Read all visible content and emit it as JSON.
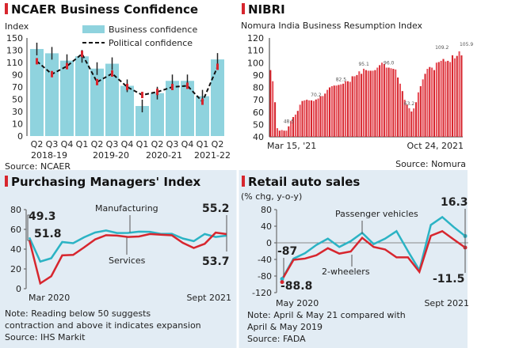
{
  "chart_data": [
    {
      "type": "bar",
      "title": "NCAER Business Confidence",
      "ylabel": "Index",
      "ylim": [
        0,
        150
      ],
      "yticks": [
        0,
        10,
        30,
        50,
        70,
        90,
        110,
        130,
        150
      ],
      "categories": [
        "Q2",
        "Q3",
        "Q4",
        "Q1",
        "Q2",
        "Q3",
        "Q4",
        "Q1",
        "Q2",
        "Q3",
        "Q4",
        "Q1",
        "Q2"
      ],
      "year_labels": [
        "2018-19",
        "2019-20",
        "2020-21",
        "2021-22"
      ],
      "series": [
        {
          "name": "Business confidence",
          "type": "bar",
          "values": [
            132,
            125,
            113,
            120,
            100,
            108,
            72,
            39,
            60,
            80,
            80,
            55,
            115
          ]
        },
        {
          "name": "Political confidence",
          "type": "line-dashed",
          "values": [
            112,
            91,
            104,
            124,
            78,
            92,
            70,
            57,
            62,
            70,
            72,
            46,
            103
          ]
        }
      ],
      "source": "Source: NCAER",
      "colors": {
        "bar": "#8fd3de",
        "line": "#111111",
        "marker": "#d7262e"
      }
    },
    {
      "type": "bar",
      "title": "NIBRI",
      "subtitle": "Nomura India Business Resumption Index",
      "ylim": [
        40,
        120
      ],
      "yticks": [
        40,
        50,
        60,
        70,
        80,
        90,
        100,
        110,
        120
      ],
      "x_labels": [
        "Mar 15, '21",
        "Oct 24, 2021"
      ],
      "values": [
        94,
        85,
        68,
        47,
        45,
        45.5,
        45,
        45,
        48.5,
        53,
        56,
        58,
        61,
        66,
        69,
        69.5,
        70,
        69.5,
        69.5,
        69,
        70.2,
        71,
        73,
        73,
        75,
        78,
        80,
        81,
        81.5,
        81.5,
        82,
        82.5,
        83,
        85,
        85,
        84.5,
        89,
        89,
        90,
        93,
        91,
        95.1,
        94,
        93.5,
        93.5,
        93.5,
        94,
        96,
        98,
        100,
        99,
        96,
        96,
        95.5,
        95,
        94.5,
        88,
        83,
        77,
        70,
        66,
        63.2,
        60.5,
        63,
        68,
        76,
        81,
        86.5,
        91,
        95,
        96.5,
        96,
        94,
        100,
        100.5,
        101.5,
        103,
        101,
        101.5,
        100.5,
        106,
        103.5,
        105.5,
        109.2,
        105.9
      ],
      "annotations": [
        "48.5",
        "70.2",
        "82.5",
        "95.1",
        "96.0",
        "63.2",
        "109.2",
        "105.9"
      ],
      "source": "Source: Nomura",
      "colors": {
        "bar": "#d7262e"
      }
    },
    {
      "type": "line",
      "title": "Purchasing Managers' Index",
      "ylim": [
        0,
        80
      ],
      "yticks": [
        0,
        20,
        40,
        60,
        80
      ],
      "x_labels": [
        "Mar 2020",
        "Sept 2021"
      ],
      "series": [
        {
          "name": "Manufacturing",
          "color": "#2bb3c4",
          "values": [
            51.8,
            27.4,
            30.8,
            47.2,
            46,
            52,
            56.8,
            58.9,
            56.3,
            56.4,
            57.7,
            57.5,
            55.4,
            55.5,
            50.8,
            48.1,
            55.3,
            52.3,
            53.7
          ]
        },
        {
          "name": "Services",
          "color": "#d7262e",
          "values": [
            49.3,
            5.4,
            12.6,
            33.7,
            34.2,
            41.8,
            49.8,
            54.1,
            53.7,
            52.3,
            52.8,
            55.3,
            54.6,
            54,
            46.4,
            41.2,
            45.4,
            56.7,
            55.2
          ]
        }
      ],
      "data_labels": [
        "49.3",
        "51.8",
        "55.2",
        "53.7"
      ],
      "notes": [
        "Note: Reading below 50 suggests",
        "contraction and above it indicates expansion",
        "Source: IHS Markit"
      ]
    },
    {
      "type": "line",
      "title": "Retail auto sales",
      "ylabel": "(% chg, y-o-y)",
      "ylim": [
        -120,
        80
      ],
      "yticks": [
        -120,
        -80,
        -40,
        0,
        40,
        80
      ],
      "x_labels": [
        "May 2020",
        "Sept 2021"
      ],
      "series": [
        {
          "name": "Passenger vehicles",
          "color": "#2bb3c4",
          "values": [
            -87,
            -38,
            -25,
            -5,
            10,
            -10,
            4,
            24,
            -3,
            10,
            28,
            -20,
            -66,
            43,
            62,
            38,
            16.3
          ]
        },
        {
          "name": "2-wheelers",
          "color": "#d7262e",
          "values": [
            -88.8,
            -41,
            -38,
            -30,
            -13,
            -26,
            -21,
            12,
            -10,
            -16,
            -35,
            -35,
            -70,
            17,
            28,
            8,
            -11.5
          ]
        }
      ],
      "data_labels": [
        "-87",
        "-88.8",
        "16.3",
        "-11.5"
      ],
      "notes": [
        "Note: April & May 21 compared with",
        "April & May 2019",
        "Source: FADA"
      ]
    }
  ]
}
